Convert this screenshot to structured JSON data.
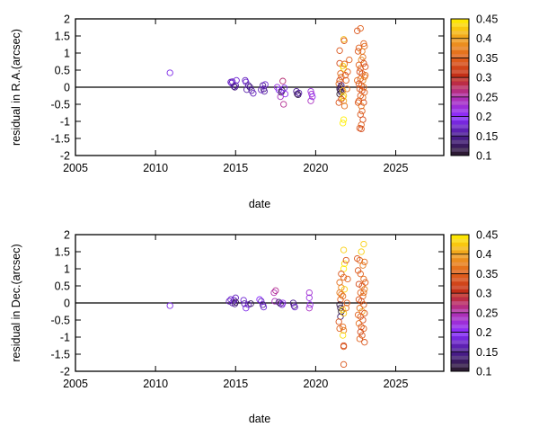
{
  "chart_data": [
    {
      "type": "scatter",
      "xlabel": "date",
      "ylabel": "residual in R.A.(arcsec)",
      "xlim": [
        2005,
        2028
      ],
      "ylim": [
        -2,
        2
      ],
      "xticks": [
        "2005",
        "2010",
        "2015",
        "2020",
        "2025"
      ],
      "yticks": [
        "-2",
        "-1.5",
        "-1",
        "-0.5",
        "0",
        "0.5",
        "1",
        "1.5",
        "2"
      ],
      "zero_line": true,
      "grid": false,
      "marker": "open-circle",
      "colorbar": {
        "range": [
          0.1,
          0.45
        ],
        "ticks": [
          "0.1",
          "0.15",
          "0.2",
          "0.25",
          "0.3",
          "0.35",
          "0.4",
          "0.45"
        ],
        "placement": "right"
      },
      "point_fields": [
        "date",
        "residual",
        "color_value"
      ],
      "points": [
        [
          2010.9,
          0.42,
          0.19
        ],
        [
          2014.7,
          0.15,
          0.17
        ],
        [
          2014.75,
          0.12,
          0.18
        ],
        [
          2014.8,
          0.16,
          0.17
        ],
        [
          2014.9,
          0.02,
          0.15
        ],
        [
          2014.95,
          0.0,
          0.14
        ],
        [
          2015.0,
          0.05,
          0.16
        ],
        [
          2015.05,
          0.2,
          0.18
        ],
        [
          2015.6,
          0.2,
          0.17
        ],
        [
          2015.65,
          0.15,
          0.18
        ],
        [
          2015.7,
          -0.07,
          0.16
        ],
        [
          2015.8,
          0.05,
          0.15
        ],
        [
          2015.9,
          0.0,
          0.14
        ],
        [
          2016.0,
          -0.1,
          0.16
        ],
        [
          2016.1,
          -0.18,
          0.17
        ],
        [
          2016.7,
          0.05,
          0.15
        ],
        [
          2016.75,
          -0.05,
          0.14
        ],
        [
          2016.8,
          -0.12,
          0.16
        ],
        [
          2016.85,
          0.08,
          0.18
        ],
        [
          2016.6,
          -0.08,
          0.17
        ],
        [
          2017.6,
          0.0,
          0.22
        ],
        [
          2017.7,
          -0.08,
          0.2
        ],
        [
          2017.8,
          -0.28,
          0.24
        ],
        [
          2017.85,
          -0.15,
          0.12
        ],
        [
          2017.9,
          -0.1,
          0.13
        ],
        [
          2017.95,
          0.18,
          0.27
        ],
        [
          2018.0,
          -0.5,
          0.26
        ],
        [
          2018.1,
          -0.2,
          0.21
        ],
        [
          2018.05,
          -0.02,
          0.19
        ],
        [
          2018.8,
          -0.12,
          0.15
        ],
        [
          2018.85,
          -0.2,
          0.13
        ],
        [
          2018.9,
          -0.22,
          0.12
        ],
        [
          2018.95,
          -0.17,
          0.16
        ],
        [
          2019.7,
          -0.12,
          0.22
        ],
        [
          2019.75,
          -0.2,
          0.23
        ],
        [
          2019.7,
          -0.4,
          0.24
        ],
        [
          2019.8,
          -0.28,
          0.21
        ],
        [
          2021.5,
          1.07,
          0.34
        ],
        [
          2021.75,
          1.4,
          0.42
        ],
        [
          2021.78,
          1.36,
          0.34
        ],
        [
          2021.5,
          0.7,
          0.33
        ],
        [
          2021.7,
          0.62,
          0.43
        ],
        [
          2021.75,
          0.55,
          0.44
        ],
        [
          2021.8,
          0.68,
          0.36
        ],
        [
          2021.55,
          0.4,
          0.35
        ],
        [
          2021.6,
          0.3,
          0.37
        ],
        [
          2021.5,
          0.2,
          0.32
        ],
        [
          2021.45,
          0.1,
          0.36
        ],
        [
          2021.55,
          0.0,
          0.12
        ],
        [
          2021.5,
          -0.05,
          0.11
        ],
        [
          2021.55,
          -0.1,
          0.13
        ],
        [
          2021.6,
          -0.15,
          0.12
        ],
        [
          2021.5,
          -0.2,
          0.1
        ],
        [
          2021.6,
          0.05,
          0.14
        ],
        [
          2021.7,
          -0.1,
          0.42
        ],
        [
          2021.75,
          -0.25,
          0.41
        ],
        [
          2021.7,
          -0.3,
          0.44
        ],
        [
          2021.45,
          -0.45,
          0.34
        ],
        [
          2021.75,
          -0.4,
          0.4
        ],
        [
          2021.8,
          -0.55,
          0.36
        ],
        [
          2021.75,
          -0.95,
          0.45
        ],
        [
          2021.7,
          -1.05,
          0.45
        ],
        [
          2021.9,
          0.2,
          0.35
        ],
        [
          2022.0,
          0.45,
          0.35
        ],
        [
          2022.1,
          0.8,
          0.35
        ],
        [
          2021.95,
          -0.05,
          0.36
        ],
        [
          2021.6,
          -0.35,
          0.33
        ],
        [
          2021.85,
          0.35,
          0.34
        ],
        [
          2022.6,
          1.65,
          0.34
        ],
        [
          2022.8,
          1.72,
          0.35
        ],
        [
          2023.0,
          1.28,
          0.35
        ],
        [
          2023.05,
          1.2,
          0.36
        ],
        [
          2022.7,
          1.15,
          0.35
        ],
        [
          2022.65,
          1.05,
          0.34
        ],
        [
          2022.9,
          1.05,
          0.37
        ],
        [
          2022.95,
          0.88,
          0.36
        ],
        [
          2022.85,
          0.8,
          0.38
        ],
        [
          2022.7,
          0.65,
          0.35
        ],
        [
          2023.0,
          0.7,
          0.33
        ],
        [
          2022.8,
          0.55,
          0.36
        ],
        [
          2023.1,
          0.6,
          0.34
        ],
        [
          2022.75,
          0.45,
          0.33
        ],
        [
          2022.9,
          0.4,
          0.34
        ],
        [
          2023.05,
          0.3,
          0.37
        ],
        [
          2022.8,
          0.25,
          0.35
        ],
        [
          2022.95,
          0.2,
          0.38
        ],
        [
          2022.7,
          0.1,
          0.33
        ],
        [
          2022.85,
          0.05,
          0.34
        ],
        [
          2023.0,
          0.0,
          0.36
        ],
        [
          2022.75,
          -0.05,
          0.35
        ],
        [
          2022.9,
          -0.1,
          0.33
        ],
        [
          2023.05,
          -0.15,
          0.35
        ],
        [
          2022.8,
          -0.25,
          0.34
        ],
        [
          2022.95,
          -0.3,
          0.36
        ],
        [
          2022.7,
          -0.4,
          0.35
        ],
        [
          2023.0,
          -0.45,
          0.33
        ],
        [
          2022.85,
          -0.55,
          0.37
        ],
        [
          2022.9,
          -0.7,
          0.35
        ],
        [
          2022.8,
          -0.8,
          0.34
        ],
        [
          2022.95,
          -0.95,
          0.33
        ],
        [
          2022.85,
          -1.1,
          0.35
        ],
        [
          2022.75,
          -1.2,
          0.34
        ],
        [
          2022.85,
          -1.22,
          0.33
        ],
        [
          2022.65,
          -0.45,
          0.34
        ],
        [
          2023.1,
          0.35,
          0.36
        ],
        [
          2022.6,
          0.2,
          0.36
        ]
      ]
    },
    {
      "type": "scatter",
      "xlabel": "date",
      "ylabel": "residual in Dec.(arcsec)",
      "xlim": [
        2005,
        2028
      ],
      "ylim": [
        -2,
        2
      ],
      "xticks": [
        "2005",
        "2010",
        "2015",
        "2020",
        "2025"
      ],
      "yticks": [
        "-2",
        "-1.5",
        "-1",
        "-0.5",
        "0",
        "0.5",
        "1",
        "1.5",
        "2"
      ],
      "zero_line": true,
      "grid": false,
      "marker": "open-circle",
      "colorbar": {
        "range": [
          0.1,
          0.45
        ],
        "ticks": [
          "0.1",
          "0.15",
          "0.2",
          "0.25",
          "0.3",
          "0.35",
          "0.4",
          "0.45"
        ],
        "placement": "right"
      },
      "point_fields": [
        "date",
        "residual",
        "color_value"
      ],
      "points": [
        [
          2010.9,
          -0.08,
          0.19
        ],
        [
          2014.6,
          0.05,
          0.17
        ],
        [
          2014.7,
          0.1,
          0.18
        ],
        [
          2014.8,
          0.0,
          0.16
        ],
        [
          2014.9,
          0.08,
          0.18
        ],
        [
          2015.0,
          0.15,
          0.17
        ],
        [
          2014.95,
          -0.03,
          0.15
        ],
        [
          2015.0,
          0.02,
          0.12
        ],
        [
          2015.5,
          0.08,
          0.18
        ],
        [
          2015.55,
          -0.02,
          0.16
        ],
        [
          2015.65,
          -0.15,
          0.19
        ],
        [
          2015.8,
          -0.05,
          0.17
        ],
        [
          2015.95,
          -0.02,
          0.13
        ],
        [
          2016.5,
          0.1,
          0.2
        ],
        [
          2016.6,
          0.05,
          0.17
        ],
        [
          2016.7,
          -0.05,
          0.15
        ],
        [
          2016.75,
          -0.12,
          0.18
        ],
        [
          2017.4,
          0.3,
          0.25
        ],
        [
          2017.5,
          0.36,
          0.26
        ],
        [
          2017.45,
          0.05,
          0.24
        ],
        [
          2017.7,
          0.02,
          0.14
        ],
        [
          2017.8,
          -0.02,
          0.12
        ],
        [
          2017.9,
          -0.05,
          0.18
        ],
        [
          2017.95,
          0.0,
          0.21
        ],
        [
          2018.6,
          0.0,
          0.15
        ],
        [
          2018.65,
          -0.08,
          0.13
        ],
        [
          2018.7,
          -0.12,
          0.18
        ],
        [
          2019.6,
          0.3,
          0.23
        ],
        [
          2019.6,
          0.15,
          0.22
        ],
        [
          2019.6,
          -0.15,
          0.24
        ],
        [
          2019.65,
          -0.05,
          0.21
        ],
        [
          2021.75,
          1.55,
          0.43
        ],
        [
          2021.8,
          1.15,
          0.44
        ],
        [
          2021.75,
          1.0,
          0.45
        ],
        [
          2021.6,
          0.85,
          0.34
        ],
        [
          2021.75,
          0.75,
          0.36
        ],
        [
          2021.9,
          1.25,
          0.34
        ],
        [
          2022.0,
          0.7,
          0.35
        ],
        [
          2021.5,
          0.6,
          0.36
        ],
        [
          2021.6,
          0.45,
          0.38
        ],
        [
          2021.8,
          0.4,
          0.43
        ],
        [
          2021.5,
          0.3,
          0.37
        ],
        [
          2021.7,
          0.2,
          0.36
        ],
        [
          2021.55,
          0.1,
          0.35
        ],
        [
          2021.5,
          -0.05,
          0.11
        ],
        [
          2021.55,
          -0.15,
          0.12
        ],
        [
          2021.6,
          -0.25,
          0.1
        ],
        [
          2021.55,
          -0.4,
          0.13
        ],
        [
          2021.7,
          -0.2,
          0.43
        ],
        [
          2021.75,
          -0.3,
          0.42
        ],
        [
          2021.45,
          -0.55,
          0.34
        ],
        [
          2021.5,
          -0.75,
          0.35
        ],
        [
          2021.7,
          -0.7,
          0.36
        ],
        [
          2021.75,
          -0.8,
          0.37
        ],
        [
          2021.7,
          -0.95,
          0.44
        ],
        [
          2021.75,
          -1.25,
          0.33
        ],
        [
          2021.75,
          -1.28,
          0.34
        ],
        [
          2021.75,
          -1.8,
          0.34
        ],
        [
          2021.95,
          0.0,
          0.35
        ],
        [
          2021.9,
          -0.15,
          0.36
        ],
        [
          2021.6,
          0.25,
          0.37
        ],
        [
          2023.0,
          1.72,
          0.43
        ],
        [
          2022.85,
          1.5,
          0.43
        ],
        [
          2022.6,
          1.3,
          0.34
        ],
        [
          2022.75,
          1.25,
          0.35
        ],
        [
          2023.05,
          1.2,
          0.36
        ],
        [
          2022.95,
          1.1,
          0.37
        ],
        [
          2022.65,
          0.95,
          0.34
        ],
        [
          2022.8,
          0.85,
          0.35
        ],
        [
          2023.0,
          0.7,
          0.36
        ],
        [
          2023.1,
          0.6,
          0.35
        ],
        [
          2022.7,
          0.55,
          0.33
        ],
        [
          2022.9,
          0.5,
          0.34
        ],
        [
          2023.05,
          0.4,
          0.38
        ],
        [
          2022.8,
          0.3,
          0.35
        ],
        [
          2022.95,
          0.2,
          0.36
        ],
        [
          2022.7,
          0.1,
          0.34
        ],
        [
          2022.85,
          0.05,
          0.33
        ],
        [
          2023.0,
          -0.05,
          0.35
        ],
        [
          2022.75,
          -0.15,
          0.36
        ],
        [
          2022.9,
          -0.25,
          0.4
        ],
        [
          2023.05,
          -0.3,
          0.34
        ],
        [
          2022.8,
          -0.4,
          0.35
        ],
        [
          2022.95,
          -0.5,
          0.33
        ],
        [
          2022.65,
          -0.35,
          0.35
        ],
        [
          2022.7,
          -0.6,
          0.36
        ],
        [
          2022.85,
          -0.7,
          0.34
        ],
        [
          2023.0,
          -0.75,
          0.35
        ],
        [
          2022.8,
          -0.85,
          0.33
        ],
        [
          2022.9,
          -0.95,
          0.34
        ],
        [
          2022.75,
          -1.05,
          0.35
        ],
        [
          2023.05,
          -1.15,
          0.34
        ],
        [
          2023.0,
          0.3,
          0.36
        ]
      ]
    }
  ],
  "colormap": {
    "stops": [
      [
        0.1,
        "#2a1a2a"
      ],
      [
        0.15,
        "#4a1c90"
      ],
      [
        0.2,
        "#8a2cff"
      ],
      [
        0.25,
        "#b030b0"
      ],
      [
        0.3,
        "#c02a18"
      ],
      [
        0.35,
        "#e0601c"
      ],
      [
        0.4,
        "#f0a020"
      ],
      [
        0.45,
        "#ffee00"
      ]
    ]
  }
}
